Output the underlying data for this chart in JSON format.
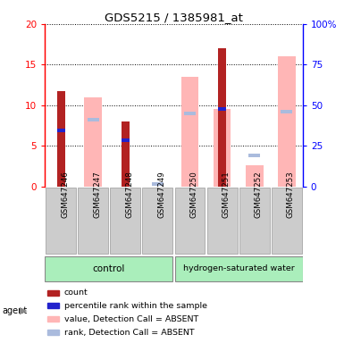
{
  "title": "GDS5215 / 1385981_at",
  "samples": [
    "GSM647246",
    "GSM647247",
    "GSM647248",
    "GSM647249",
    "GSM647250",
    "GSM647251",
    "GSM647252",
    "GSM647253"
  ],
  "red_bars": [
    11.7,
    0,
    8.0,
    0,
    0,
    17.0,
    0,
    0
  ],
  "blue_marks": [
    6.9,
    0,
    5.7,
    0,
    0,
    9.5,
    0,
    0
  ],
  "pink_bars": [
    0,
    11.0,
    0,
    0,
    13.5,
    9.5,
    2.6,
    16.0
  ],
  "lblue_marks": [
    0,
    8.2,
    0,
    0.3,
    9.0,
    0,
    3.8,
    9.2
  ],
  "ylim_left": [
    0,
    20
  ],
  "ylim_right": [
    0,
    100
  ],
  "yticks_left": [
    0,
    5,
    10,
    15,
    20
  ],
  "yticks_right": [
    0,
    25,
    50,
    75,
    100
  ],
  "bar_width": 0.55,
  "red_color": "#b22222",
  "blue_color": "#2222cc",
  "pink_color": "#ffb6b6",
  "lblue_color": "#aabbdd",
  "plot_bg": "#ffffff",
  "sample_bg": "#cccccc",
  "control_color": "#aaeebb",
  "hw_color": "#aaeebb",
  "legend_items": [
    {
      "color": "#b22222",
      "label": "count",
      "marker": "square"
    },
    {
      "color": "#2222cc",
      "label": "percentile rank within the sample",
      "marker": "square"
    },
    {
      "color": "#ffb6b6",
      "label": "value, Detection Call = ABSENT",
      "marker": "square"
    },
    {
      "color": "#aabbdd",
      "label": "rank, Detection Call = ABSENT",
      "marker": "square"
    }
  ]
}
